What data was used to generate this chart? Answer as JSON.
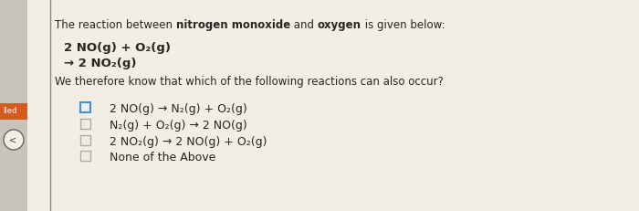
{
  "bg_color": "#c8c4bc",
  "panel_color": "#f2ede5",
  "title_parts": [
    "The reaction between ",
    "nitrogen monoxide",
    " and ",
    "oxygen",
    " is given below:"
  ],
  "title_bold": [
    false,
    true,
    false,
    true,
    false
  ],
  "rxn1": "2 NO(g) + O₂(g)",
  "rxn2": "→ 2 NO₂(g)",
  "question": "We therefore know that which of the following reactions can also occur?",
  "options": [
    "2 NO(g) → N₂(g) + O₂(g)",
    "N₂(g) + O₂(g) → 2 NO(g)",
    "2 NO₂(g) → 2 NO(g) + O₂(g)",
    "None of the Above"
  ],
  "selected_option": 0,
  "tab_color": "#d45a20",
  "tab_label": "lled",
  "text_color": "#2a2520",
  "line_color": "#888880",
  "fs_title": 8.5,
  "fs_rxn": 9.5,
  "fs_body": 8.5,
  "fs_options": 9.0
}
